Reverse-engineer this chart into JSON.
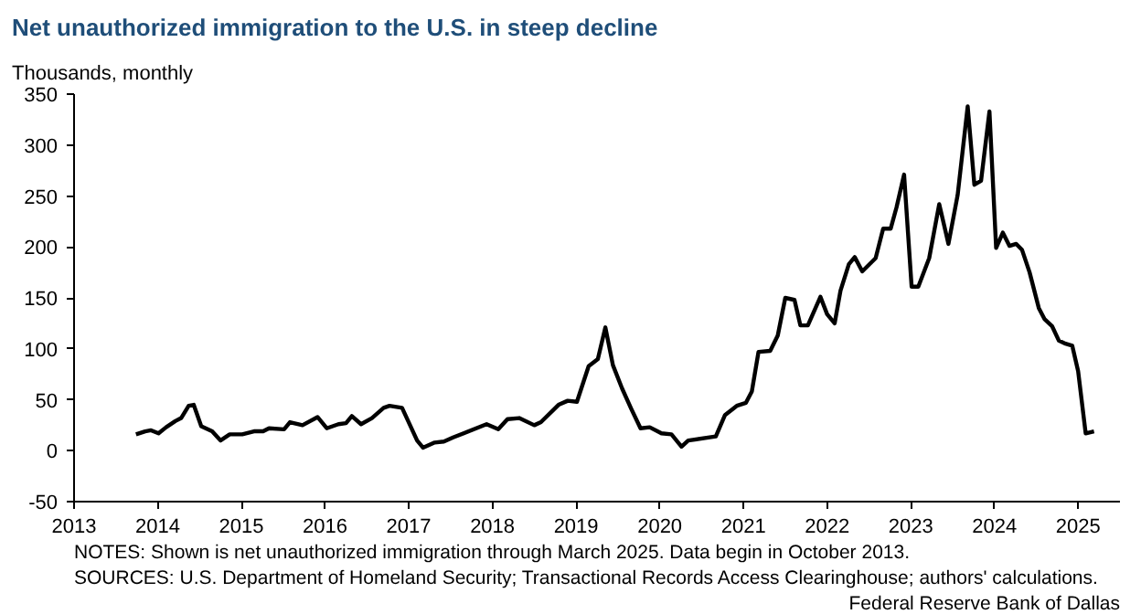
{
  "chart_data": {
    "type": "line",
    "title": "Net unauthorized immigration to the U.S. in steep decline",
    "subtitle": "Thousands,  monthly",
    "annotations": [
      "NOTES: Shown is net unauthorized immigration through March 2025. Data begin in October 2013.",
      "SOURCES: U.S. Department of Homeland Security; Transactional Records Access Clearinghouse; authors' calculations.",
      "Federal Reserve Bank of Dallas"
    ],
    "series": [
      {
        "color": "#000000",
        "x": [
          2013.74,
          2013.85,
          2013.92,
          2014.01,
          2014.1,
          2014.21,
          2014.28,
          2014.37,
          2014.43,
          2014.52,
          2014.65,
          2014.75,
          2014.86,
          2015.01,
          2015.15,
          2015.26,
          2015.33,
          2015.51,
          2015.58,
          2015.73,
          2015.91,
          2016.02,
          2016.16,
          2016.25,
          2016.32,
          2016.43,
          2016.56,
          2016.7,
          2016.77,
          2016.92,
          2017.1,
          2017.17,
          2017.31,
          2017.42,
          2017.53,
          2017.93,
          2018.07,
          2018.18,
          2018.32,
          2018.5,
          2018.58,
          2018.79,
          2018.9,
          2019.01,
          2019.15,
          2019.26,
          2019.35,
          2019.44,
          2019.55,
          2019.66,
          2019.77,
          2019.88,
          2020.02,
          2020.14,
          2020.26,
          2020.34,
          2020.67,
          2020.78,
          2020.92,
          2021.03,
          2021.1,
          2021.18,
          2021.32,
          2021.41,
          2021.5,
          2021.61,
          2021.68,
          2021.77,
          2021.92,
          2022.0,
          2022.09,
          2022.16,
          2022.26,
          2022.33,
          2022.42,
          2022.58,
          2022.67,
          2022.76,
          2022.83,
          2022.92,
          2023.01,
          2023.09,
          2023.22,
          2023.34,
          2023.45,
          2023.56,
          2023.68,
          2023.76,
          2023.84,
          2023.94,
          2024.02,
          2024.1,
          2024.18,
          2024.26,
          2024.33,
          2024.42,
          2024.53,
          2024.6,
          2024.69,
          2024.77,
          2024.85,
          2024.93,
          2025.0,
          2025.09,
          2025.19
        ],
        "values": [
          16,
          19,
          20,
          17,
          23,
          29,
          32,
          44,
          45,
          24,
          19,
          10,
          16,
          16,
          19,
          19,
          22,
          21,
          28,
          25,
          33,
          22,
          26,
          27,
          34,
          26,
          32,
          42,
          44,
          42,
          10,
          3,
          8,
          9,
          13,
          26,
          21,
          31,
          32,
          25,
          28,
          45,
          49,
          48,
          83,
          90,
          121,
          84,
          61,
          41,
          22,
          23,
          17,
          16,
          4,
          10,
          14,
          35,
          44,
          47,
          58,
          97,
          98,
          113,
          150,
          148,
          123,
          123,
          151,
          134,
          125,
          157,
          183,
          190,
          176,
          189,
          218,
          218,
          239,
          271,
          161,
          161,
          189,
          242,
          203,
          251,
          338,
          261,
          265,
          333,
          199,
          214,
          201,
          203,
          197,
          175,
          140,
          129,
          122,
          108,
          105,
          103,
          78,
          17,
          19
        ]
      }
    ],
    "xlim": [
      2013,
      2025.5
    ],
    "xticks": [
      2013,
      2014,
      2015,
      2016,
      2017,
      2018,
      2019,
      2020,
      2021,
      2022,
      2023,
      2024,
      2025
    ],
    "ylim": [
      -50,
      350
    ],
    "yticks": [
      -50,
      0,
      50,
      100,
      150,
      200,
      250,
      300,
      350
    ],
    "line_style": "solid"
  }
}
